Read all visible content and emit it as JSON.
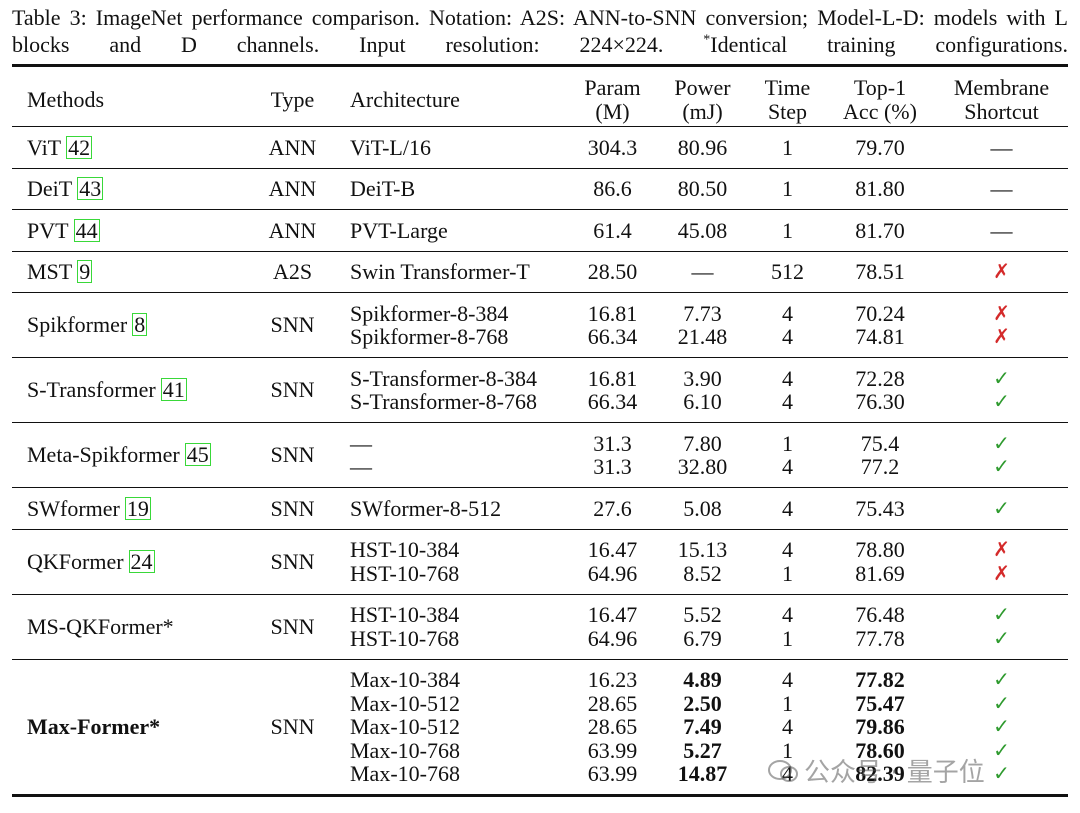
{
  "caption": {
    "label": "Table 3:",
    "text": "ImageNet performance comparison. Notation: A2S: ANN-to-SNN conversion; Model-L-D: models with L blocks and D channels. Input resolution: 224×224.",
    "footnote_mark": "*",
    "footnote": "Identical training configurations."
  },
  "table": {
    "headers": [
      [
        "Methods"
      ],
      [
        "Type"
      ],
      [
        "Architecture"
      ],
      [
        "Param",
        "(M)"
      ],
      [
        "Power",
        "(mJ)"
      ],
      [
        "Time",
        "Step"
      ],
      [
        "Top-1",
        "Acc (%)"
      ],
      [
        "Membrane",
        "Shortcut"
      ]
    ],
    "symbol_colors": {
      "✓": "#2e9a2e",
      "✗": "#d42a2a"
    },
    "groups": [
      {
        "method": "ViT",
        "cite": "42",
        "type": "ANN",
        "rows": [
          [
            "ViT-L/16",
            "304.3",
            "80.96",
            "1",
            "79.70",
            "—"
          ]
        ]
      },
      {
        "method": "DeiT",
        "cite": "43",
        "type": "ANN",
        "rows": [
          [
            "DeiT-B",
            "86.6",
            "80.50",
            "1",
            "81.80",
            "—"
          ]
        ]
      },
      {
        "method": "PVT",
        "cite": "44",
        "type": "ANN",
        "rows": [
          [
            "PVT-Large",
            "61.4",
            "45.08",
            "1",
            "81.70",
            "—"
          ]
        ]
      },
      {
        "method": "MST",
        "cite": "9",
        "type": "A2S",
        "rows": [
          [
            "Swin Transformer-T",
            "28.50",
            "—",
            "512",
            "78.51",
            "✗"
          ]
        ]
      },
      {
        "method": "Spikformer",
        "cite": "8",
        "type": "SNN",
        "rows": [
          [
            "Spikformer-8-384",
            "16.81",
            "7.73",
            "4",
            "70.24",
            "✗"
          ],
          [
            "Spikformer-8-768",
            "66.34",
            "21.48",
            "4",
            "74.81",
            "✗"
          ]
        ]
      },
      {
        "method": "S-Transformer",
        "cite": "41",
        "type": "SNN",
        "rows": [
          [
            "S-Transformer-8-384",
            "16.81",
            "3.90",
            "4",
            "72.28",
            "✓"
          ],
          [
            "S-Transformer-8-768",
            "66.34",
            "6.10",
            "4",
            "76.30",
            "✓"
          ]
        ]
      },
      {
        "method": "Meta-Spikformer",
        "cite": "45",
        "type": "SNN",
        "rows": [
          [
            "—",
            "31.3",
            "7.80",
            "1",
            "75.4",
            "✓"
          ],
          [
            "—",
            "31.3",
            "32.80",
            "4",
            "77.2",
            "✓"
          ]
        ]
      },
      {
        "method": "SWformer",
        "cite": "19",
        "type": "SNN",
        "rows": [
          [
            "SWformer-8-512",
            "27.6",
            "5.08",
            "4",
            "75.43",
            "✓"
          ]
        ]
      },
      {
        "method": "QKFormer",
        "cite": "24",
        "type": "SNN",
        "rows": [
          [
            "HST-10-384",
            "16.47",
            "15.13",
            "4",
            "78.80",
            "✗"
          ],
          [
            "HST-10-768",
            "64.96",
            "8.52",
            "1",
            "81.69",
            "✗"
          ]
        ]
      },
      {
        "method": "MS-QKFormer*",
        "type": "SNN",
        "rows": [
          [
            "HST-10-384",
            "16.47",
            "5.52",
            "4",
            "76.48",
            "✓"
          ],
          [
            "HST-10-768",
            "64.96",
            "6.79",
            "1",
            "77.78",
            "✓"
          ]
        ]
      },
      {
        "method": "Max-Former*",
        "type": "SNN",
        "rows": [
          [
            "Max-10-384",
            "16.23",
            "4.89",
            "4",
            "77.82",
            "✓"
          ],
          [
            "Max-10-512",
            "28.65",
            "2.50",
            "1",
            "75.47",
            "✓"
          ],
          [
            "Max-10-512",
            "28.65",
            "7.49",
            "4",
            "79.86",
            "✓"
          ],
          [
            "Max-10-768",
            "63.99",
            "5.27",
            "1",
            "78.60",
            "✓"
          ],
          [
            "Max-10-768",
            "63.99",
            "14.87",
            "4",
            "82.39",
            "✓"
          ]
        ]
      }
    ]
  },
  "watermark": "公众号 · 量子位"
}
